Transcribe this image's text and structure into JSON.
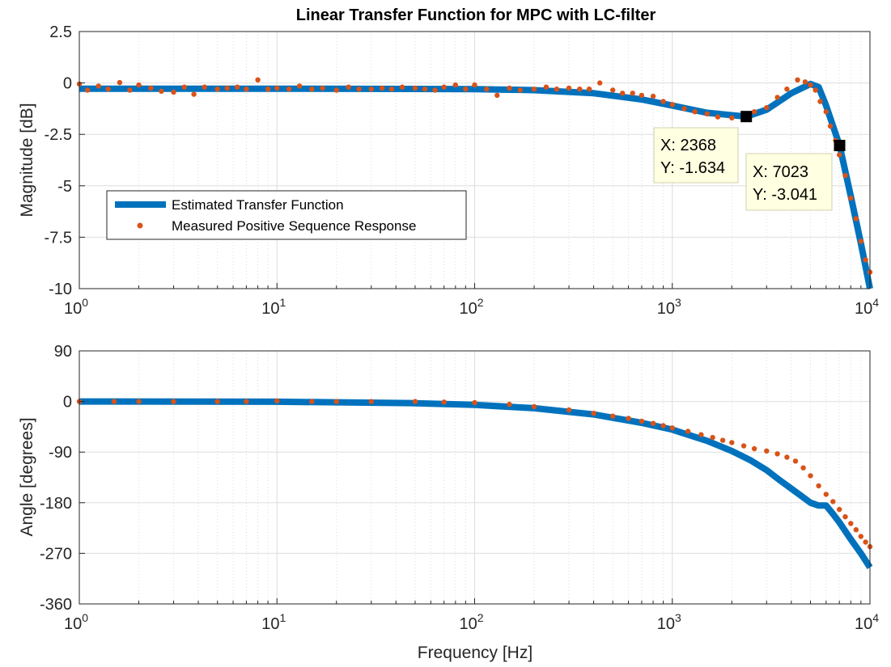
{
  "chart_data": [
    {
      "type": "line",
      "title": "Linear Transfer Function for MPC with LC-filter",
      "xlabel": "",
      "ylabel": "Magnitude [dB]",
      "xscale": "log",
      "xlim": [
        1,
        10000
      ],
      "ylim": [
        -10,
        2.5
      ],
      "yticks": [
        "2.5",
        "0",
        "-2.5",
        "-5",
        "-7.5",
        "-10"
      ],
      "yticks_values": [
        2.5,
        0,
        -2.5,
        -5,
        -7.5,
        -10
      ],
      "grid": true,
      "legend": {
        "placement": "middle-left",
        "entries": [
          "Estimated Transfer Function",
          "Measured Positive Sequence Response"
        ]
      },
      "series": [
        {
          "name": "Estimated Transfer Function",
          "style": "thick-line",
          "color": "#0072BD",
          "x": [
            1,
            10,
            100,
            200,
            400,
            700,
            1000,
            1500,
            2368,
            3000,
            4000,
            5000,
            5500,
            6000,
            7023,
            8000,
            9000,
            10000
          ],
          "y": [
            -0.28,
            -0.28,
            -0.3,
            -0.35,
            -0.5,
            -0.8,
            -1.1,
            -1.45,
            -1.634,
            -1.3,
            -0.5,
            -0.05,
            -0.2,
            -1.1,
            -3.041,
            -5.5,
            -7.8,
            -10.0
          ]
        },
        {
          "name": "Measured Positive Sequence Response",
          "style": "dots",
          "color": "#D95319",
          "x": [
            1,
            1.1,
            1.25,
            1.4,
            1.6,
            1.8,
            2.0,
            2.3,
            2.6,
            3.0,
            3.4,
            3.8,
            4.3,
            5,
            5.6,
            6.3,
            7,
            8,
            9,
            10,
            11.5,
            13,
            15,
            17,
            20,
            23,
            26,
            30,
            34,
            38,
            43,
            50,
            56,
            63,
            70,
            80,
            90,
            100,
            115,
            130,
            150,
            170,
            200,
            230,
            260,
            300,
            340,
            380,
            430,
            500,
            560,
            630,
            700,
            800,
            900,
            1000,
            1150,
            1300,
            1500,
            1700,
            2000,
            2300,
            2600,
            3000,
            3400,
            3800,
            4300,
            4700,
            5000,
            5300,
            5600,
            6000,
            6300,
            6700,
            7000,
            7500,
            8000,
            8500,
            9000,
            9500,
            10000
          ],
          "y": [
            -0.05,
            -0.35,
            -0.15,
            -0.3,
            0.02,
            -0.35,
            -0.1,
            -0.25,
            -0.4,
            -0.45,
            -0.2,
            -0.55,
            -0.2,
            -0.3,
            -0.25,
            -0.2,
            -0.3,
            0.15,
            -0.3,
            -0.25,
            -0.3,
            -0.15,
            -0.3,
            -0.25,
            -0.35,
            -0.2,
            -0.3,
            -0.3,
            -0.25,
            -0.3,
            -0.2,
            -0.25,
            -0.3,
            -0.35,
            -0.2,
            -0.1,
            -0.3,
            -0.1,
            -0.3,
            -0.6,
            -0.25,
            -0.35,
            -0.3,
            -0.2,
            -0.3,
            -0.25,
            -0.3,
            -0.3,
            0.0,
            -0.35,
            -0.5,
            -0.5,
            -0.6,
            -0.65,
            -0.9,
            -1.05,
            -1.25,
            -1.4,
            -1.5,
            -1.65,
            -1.7,
            -1.6,
            -1.4,
            -1.2,
            -0.7,
            -0.3,
            0.15,
            0.05,
            -0.1,
            -0.35,
            -0.9,
            -1.4,
            -2.1,
            -2.8,
            -3.5,
            -4.5,
            -5.6,
            -6.6,
            -7.7,
            -8.6,
            -9.2
          ]
        }
      ],
      "datatips": [
        {
          "x_label": "X: 2368",
          "y_label": "Y: -1.634",
          "x": 2368,
          "y": -1.634
        },
        {
          "x_label": "X: 7023",
          "y_label": "Y: -3.041",
          "x": 7023,
          "y": -3.041
        }
      ]
    },
    {
      "type": "line",
      "title": "",
      "xlabel": "Frequency [Hz]",
      "ylabel": "Angle [degrees]",
      "xscale": "log",
      "xlim": [
        1,
        10000
      ],
      "ylim": [
        -360,
        90
      ],
      "yticks": [
        "90",
        "0",
        "-90",
        "-180",
        "-270",
        "-360"
      ],
      "yticks_values": [
        90,
        0,
        -90,
        -180,
        -270,
        -360
      ],
      "grid": true,
      "series": [
        {
          "name": "Estimated Transfer Function",
          "style": "thick-line",
          "color": "#0072BD",
          "x": [
            1,
            10,
            50,
            100,
            200,
            400,
            700,
            1000,
            1500,
            2000,
            2500,
            3000,
            3500,
            4000,
            4500,
            5000,
            5500,
            6000,
            6500,
            7000,
            8000,
            9000,
            10000
          ],
          "y": [
            0,
            -0.5,
            -3,
            -6,
            -12,
            -23,
            -38,
            -50,
            -70,
            -88,
            -105,
            -122,
            -140,
            -155,
            -168,
            -180,
            -185,
            -185,
            -200,
            -215,
            -245,
            -270,
            -295
          ]
        },
        {
          "name": "Measured Positive Sequence Response",
          "style": "dots",
          "color": "#D95319",
          "x": [
            1,
            1.5,
            2,
            3,
            5,
            7,
            10,
            15,
            20,
            30,
            50,
            70,
            100,
            150,
            200,
            300,
            400,
            500,
            600,
            700,
            800,
            900,
            1000,
            1200,
            1400,
            1600,
            1800,
            2000,
            2300,
            2600,
            3000,
            3400,
            3800,
            4200,
            4600,
            5000,
            5500,
            6000,
            6500,
            7000,
            7500,
            8000,
            8500,
            9000,
            9500,
            10000
          ],
          "y": [
            0,
            0,
            0,
            0,
            0,
            0,
            1,
            0,
            0,
            0,
            0,
            -1,
            -2,
            -5,
            -9,
            -15,
            -21,
            -26,
            -30,
            -35,
            -39,
            -43,
            -47,
            -53,
            -59,
            -64,
            -69,
            -73,
            -79,
            -84,
            -88,
            -93,
            -99,
            -106,
            -118,
            -132,
            -150,
            -165,
            -178,
            -192,
            -205,
            -217,
            -228,
            -240,
            -250,
            -258
          ]
        }
      ]
    }
  ]
}
